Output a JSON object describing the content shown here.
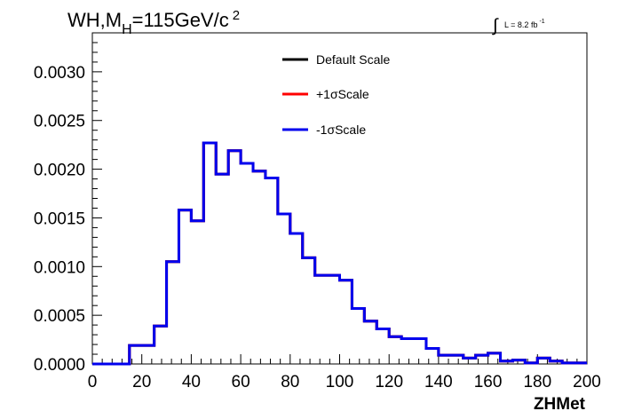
{
  "chart_data": {
    "type": "line",
    "title_parts": {
      "prefix": "WH,M",
      "sub": "H",
      "middle": "=115GeV/c",
      "sup": "2"
    },
    "lumi": {
      "symbol": "∫",
      "text": "L = 8.2 fb",
      "sup": "-1"
    },
    "xlabel": "ZHMet",
    "ylabel": "",
    "xlim": [
      0,
      200
    ],
    "ylim": [
      0,
      0.0034
    ],
    "xticks": [
      "0",
      "20",
      "40",
      "60",
      "80",
      "100",
      "120",
      "140",
      "160",
      "180",
      "200"
    ],
    "yticks": [
      "0.0000",
      "0.0005",
      "0.0010",
      "0.0015",
      "0.0020",
      "0.0025",
      "0.0030"
    ],
    "bin_edges": [
      0,
      5,
      10,
      15,
      20,
      25,
      30,
      35,
      40,
      45,
      50,
      55,
      60,
      65,
      70,
      75,
      80,
      85,
      90,
      95,
      100,
      105,
      110,
      115,
      120,
      125,
      130,
      135,
      140,
      145,
      150,
      155,
      160,
      165,
      170,
      175,
      180,
      185,
      190,
      195,
      200
    ],
    "series": [
      {
        "name": "Default Scale",
        "color": "#000000",
        "values": [
          0,
          0,
          0,
          0.00019,
          0.00019,
          0.00039,
          0.00105,
          0.00158,
          0.00147,
          0.00227,
          0.00195,
          0.00219,
          0.00206,
          0.00198,
          0.00191,
          0.00154,
          0.00134,
          0.00109,
          0.00091,
          0.00091,
          0.00086,
          0.00057,
          0.00044,
          0.00036,
          0.00028,
          0.00026,
          0.00026,
          0.00016,
          9e-05,
          9e-05,
          6e-05,
          9e-05,
          0.00011,
          3e-05,
          4e-05,
          1e-05,
          6e-05,
          3e-05,
          1e-05,
          1e-05
        ]
      },
      {
        "name": "+1σScale",
        "color": "#ff0000",
        "values": [
          0,
          0,
          0,
          0.00019,
          0.00019,
          0.00039,
          0.00105,
          0.00158,
          0.00147,
          0.00227,
          0.00195,
          0.00219,
          0.00206,
          0.00198,
          0.00191,
          0.00154,
          0.00134,
          0.00109,
          0.00091,
          0.00091,
          0.00086,
          0.00057,
          0.00044,
          0.00036,
          0.00028,
          0.00026,
          0.00026,
          0.00016,
          9e-05,
          9e-05,
          6e-05,
          9e-05,
          0.00011,
          3e-05,
          4e-05,
          1e-05,
          6e-05,
          3e-05,
          1e-05,
          1e-05
        ]
      },
      {
        "name": "-1σScale",
        "color": "#0000ee",
        "values": [
          0,
          0,
          0,
          0.00019,
          0.00019,
          0.00039,
          0.00105,
          0.00158,
          0.00147,
          0.00227,
          0.00195,
          0.00219,
          0.00206,
          0.00198,
          0.00191,
          0.00154,
          0.00134,
          0.00109,
          0.00091,
          0.00091,
          0.00086,
          0.00057,
          0.00044,
          0.00036,
          0.00028,
          0.00026,
          0.00026,
          0.00016,
          9e-05,
          9e-05,
          6e-05,
          9e-05,
          0.00011,
          3e-05,
          4e-05,
          1e-05,
          6e-05,
          3e-05,
          1e-05,
          1e-05
        ]
      }
    ],
    "legend_position": "top-center",
    "grid": false
  }
}
